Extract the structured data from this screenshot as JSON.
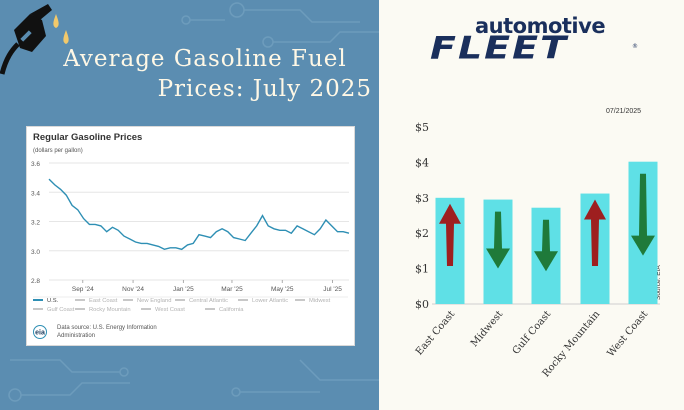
{
  "headline": {
    "line1": "Average Gasoline Fuel",
    "line2": "Prices: July 2025"
  },
  "logo": {
    "top": "automotive",
    "bottom": "FLEET",
    "registered": "®"
  },
  "inset_chart": {
    "title": "Regular Gasoline Prices",
    "units": "(dollars per gallon)",
    "source_line1": "Data source: U.S. Energy Information",
    "source_line2": "Administration",
    "eia_logo": "eia",
    "legend": [
      "U.S.",
      "East Coast",
      "New England",
      "Central Atlantic",
      "Lower Atlantic",
      "Midwest",
      "Gulf Coast",
      "Rocky Mountain",
      "West Coast",
      "California"
    ],
    "colors": {
      "line": "#2e8fb4",
      "muted": "#c8c8c8"
    }
  },
  "main_chart": {
    "date": "07/21/2025",
    "source": "Source: EIA",
    "colors": {
      "bar": "#5fe0e6",
      "up_arrow": "#9e1f1f",
      "down_arrow": "#1f7a3a"
    }
  },
  "chart_data": [
    {
      "type": "line",
      "title": "Regular Gasoline Prices",
      "ylabel": "(dollars per gallon)",
      "ylim": [
        2.8,
        3.6
      ],
      "yticks": [
        "3.6",
        "3.4",
        "3.2",
        "3.0",
        "2.8"
      ],
      "xticks": [
        "Sep '24",
        "Nov '24",
        "Jan '25",
        "Mar '25",
        "May '25",
        "Jul '25"
      ],
      "x": [
        "2024-07-22",
        "2024-07-29",
        "2024-08-05",
        "2024-08-12",
        "2024-08-19",
        "2024-08-26",
        "2024-09-02",
        "2024-09-09",
        "2024-09-16",
        "2024-09-23",
        "2024-09-30",
        "2024-10-07",
        "2024-10-14",
        "2024-10-21",
        "2024-10-28",
        "2024-11-04",
        "2024-11-11",
        "2024-11-18",
        "2024-11-25",
        "2024-12-02",
        "2024-12-09",
        "2024-12-16",
        "2024-12-23",
        "2024-12-30",
        "2025-01-06",
        "2025-01-13",
        "2025-01-20",
        "2025-01-27",
        "2025-02-03",
        "2025-02-10",
        "2025-02-17",
        "2025-02-24",
        "2025-03-03",
        "2025-03-10",
        "2025-03-17",
        "2025-03-24",
        "2025-03-31",
        "2025-04-07",
        "2025-04-14",
        "2025-04-21",
        "2025-04-28",
        "2025-05-05",
        "2025-05-12",
        "2025-05-19",
        "2025-05-26",
        "2025-06-02",
        "2025-06-09",
        "2025-06-16",
        "2025-06-23",
        "2025-06-30",
        "2025-07-07",
        "2025-07-14",
        "2025-07-21"
      ],
      "series": [
        {
          "name": "U.S.",
          "values": [
            3.49,
            3.45,
            3.42,
            3.38,
            3.31,
            3.28,
            3.22,
            3.18,
            3.18,
            3.17,
            3.13,
            3.16,
            3.14,
            3.1,
            3.08,
            3.06,
            3.05,
            3.05,
            3.04,
            3.03,
            3.01,
            3.02,
            3.02,
            3.01,
            3.04,
            3.05,
            3.11,
            3.1,
            3.09,
            3.13,
            3.15,
            3.13,
            3.09,
            3.08,
            3.07,
            3.12,
            3.17,
            3.24,
            3.17,
            3.15,
            3.14,
            3.14,
            3.12,
            3.17,
            3.15,
            3.13,
            3.11,
            3.15,
            3.21,
            3.17,
            3.13,
            3.13,
            3.12
          ]
        }
      ]
    },
    {
      "type": "bar",
      "categories": [
        "East Coast",
        "Midwest",
        "Gulf Coast",
        "Rocky Mountain",
        "West Coast"
      ],
      "values": [
        3.0,
        2.95,
        2.72,
        3.12,
        4.02
      ],
      "trend": [
        "up",
        "down",
        "down",
        "up",
        "down"
      ],
      "yticks": [
        "$0",
        "$1",
        "$2",
        "$3",
        "$4",
        "$5"
      ],
      "ylim": [
        0,
        5
      ],
      "date": "07/21/2025",
      "source": "Source: EIA"
    }
  ]
}
